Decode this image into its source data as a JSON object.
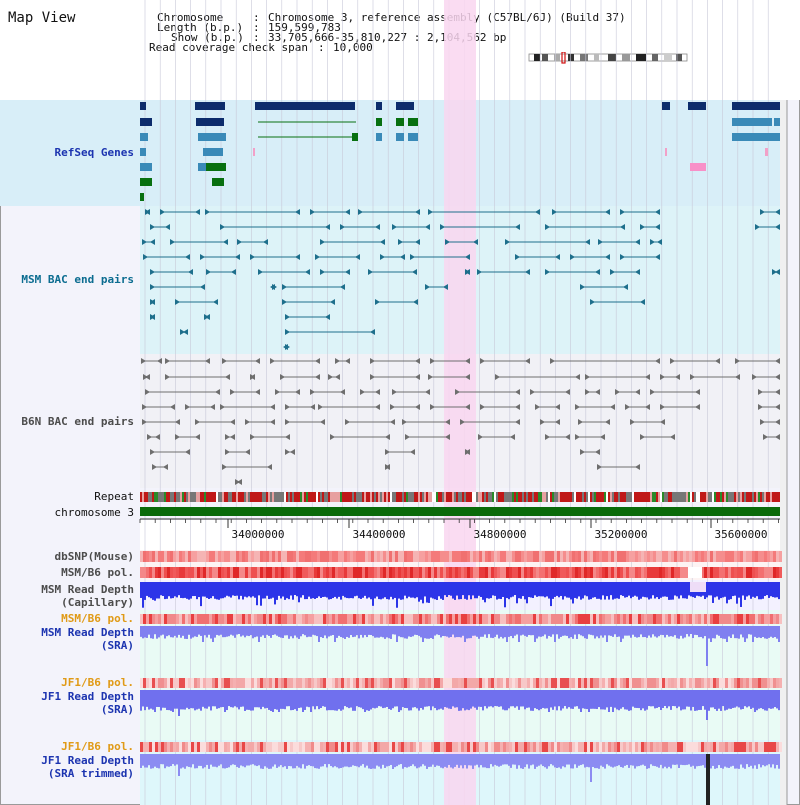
{
  "title": "Map View",
  "info": {
    "chromosome_key": "Chromosome",
    "chromosome_val": "Chromosome 3, reference assembly (C57BL/6J) (Build 37)",
    "length_key": "Length (b.p.)",
    "length_val": "159,599,783",
    "show_key": "Show (b.p.)",
    "show_val": "33,705,666-35,810,227 : 2,104,562 bp",
    "coverage_key": "Read coverage check span",
    "coverage_val": "10,000"
  },
  "tracks": {
    "refseq": "RefSeq Genes",
    "msm_bac": "MSM BAC end pairs",
    "b6n_bac": "B6N BAC end pairs",
    "repeat": "Repeat",
    "chromosome": "chromosome 3",
    "dbsnp": "dbSNP(Mouse)",
    "msm_b6_pol_1": "MSM/B6 pol.",
    "msm_depth_cap_1": "MSM Read Depth",
    "msm_depth_cap_2": "(Capillary)",
    "msm_b6_pol_2": "MSM/B6 pol.",
    "msm_depth_sra_1": "MSM Read Depth",
    "msm_depth_sra_2": "(SRA)",
    "jf1_b6_pol_1": "JF1/B6 pol.",
    "jf1_depth_sra_1": "JF1 Read Depth",
    "jf1_depth_sra_2": "(SRA)",
    "jf1_b6_pol_2": "JF1/B6 pol.",
    "jf1_depth_trim_1": "JF1 Read Depth",
    "jf1_depth_trim_2": "(SRA trimmed)"
  },
  "axis": {
    "ticks": [
      "34000000",
      "34400000",
      "34800000",
      "35200000",
      "35600000"
    ]
  },
  "colors": {
    "highlight": "#f9d6f0",
    "refseq_bg": "#d8eef8",
    "gene_dark": "#0d2c6c",
    "gene_mid": "#3a8ab8",
    "gene_green": "#087010",
    "msm_bac": "#1e6f8c",
    "b6n_bac": "#6e6e6e",
    "depth_blue": "#2030e0",
    "chromosome_green": "#0a6a0a"
  }
}
